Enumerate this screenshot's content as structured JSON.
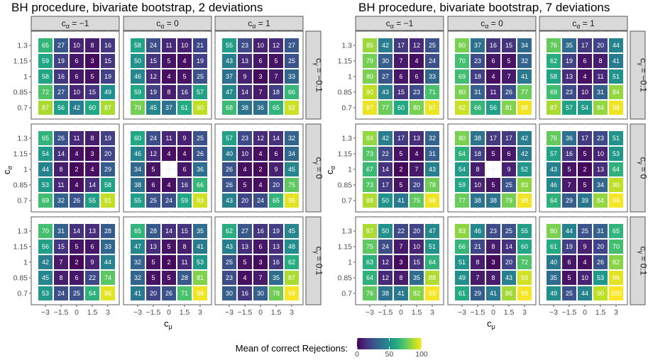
{
  "chart_data": [
    {
      "type": "heatmap",
      "title": "BH procedure, bivariate bootstrap, 2 deviations",
      "xlabel": "c_μ",
      "ylabel": "c_σ",
      "x_categories": [
        "−3",
        "−1.5",
        "0",
        "1.5",
        "3"
      ],
      "y_categories": [
        "1.3",
        "1.15",
        "1",
        "0.85",
        "0.7"
      ],
      "col_facets": [
        "c_α = −1",
        "c_α = 0",
        "c_α = 1"
      ],
      "row_facets": [
        "c_γ = −0.1",
        "c_γ = 0",
        "c_γ = 0.1"
      ],
      "panels": [
        [
          [
            [
              65,
              27,
              10,
              8,
              16
            ],
            [
              59,
              19,
              6,
              3,
              15
            ],
            [
              58,
              16,
              6,
              5,
              19
            ],
            [
              72,
              27,
              10,
              15,
              49
            ],
            [
              87,
              56,
              42,
              60,
              87
            ]
          ],
          [
            [
              58,
              24,
              11,
              10,
              21
            ],
            [
              50,
              15,
              5,
              4,
              19
            ],
            [
              46,
              12,
              4,
              5,
              25
            ],
            [
              59,
              19,
              8,
              16,
              57
            ],
            [
              79,
              45,
              37,
              61,
              90
            ]
          ],
          [
            [
              55,
              23,
              10,
              12,
              27
            ],
            [
              43,
              13,
              6,
              5,
              25
            ],
            [
              37,
              9,
              3,
              7,
              33
            ],
            [
              47,
              14,
              7,
              18,
              66
            ],
            [
              68,
              38,
              36,
              65,
              92
            ]
          ]
        ],
        [
          [
            [
              65,
              26,
              11,
              8,
              19
            ],
            [
              54,
              14,
              4,
              3,
              20
            ],
            [
              44,
              8,
              2,
              4,
              29
            ],
            [
              53,
              11,
              4,
              14,
              58
            ],
            [
              69,
              32,
              26,
              55,
              91
            ]
          ],
          [
            [
              60,
              24,
              11,
              9,
              25
            ],
            [
              46,
              12,
              4,
              4,
              26
            ],
            [
              34,
              5,
              null,
              6,
              36
            ],
            [
              38,
              6,
              4,
              16,
              66
            ],
            [
              55,
              25,
              24,
              59,
              93
            ]
          ],
          [
            [
              57,
              23,
              12,
              14,
              32
            ],
            [
              40,
              10,
              4,
              6,
              34
            ],
            [
              26,
              4,
              2,
              9,
              45
            ],
            [
              26,
              5,
              4,
              20,
              75
            ],
            [
              43,
              20,
              24,
              65,
              96
            ]
          ]
        ],
        [
          [
            [
              70,
              31,
              14,
              13,
              28
            ],
            [
              56,
              15,
              5,
              6,
              33
            ],
            [
              42,
              7,
              2,
              9,
              44
            ],
            [
              45,
              8,
              6,
              22,
              74
            ],
            [
              53,
              24,
              25,
              64,
              96
            ]
          ],
          [
            [
              65,
              28,
              14,
              15,
              35
            ],
            [
              47,
              13,
              5,
              8,
              41
            ],
            [
              32,
              5,
              2,
              11,
              53
            ],
            [
              32,
              5,
              5,
              28,
              81
            ],
            [
              41,
              20,
              26,
              71,
              98
            ]
          ],
          [
            [
              62,
              27,
              16,
              19,
              45
            ],
            [
              43,
              13,
              6,
              13,
              48
            ],
            [
              25,
              5,
              3,
              16,
              62
            ],
            [
              23,
              4,
              7,
              35,
              87
            ],
            [
              30,
              16,
              30,
              78,
              99
            ]
          ]
        ]
      ]
    },
    {
      "type": "heatmap",
      "title": "BH procedure, bivariate bootstrap, 7 deviations",
      "xlabel": "c_μ",
      "ylabel": "c_σ",
      "x_categories": [
        "−3",
        "−1.5",
        "0",
        "1.5",
        "3"
      ],
      "y_categories": [
        "1.3",
        "1.15",
        "1",
        "0.85",
        "0.7"
      ],
      "col_facets": [
        "c_α = −1",
        "c_α = 0",
        "c_α = 1"
      ],
      "row_facets": [
        "c_γ = −0.1",
        "c_γ = 0",
        "c_γ = 0.1"
      ],
      "panels": [
        [
          [
            [
              85,
              42,
              17,
              12,
              25
            ],
            [
              79,
              30,
              7,
              4,
              24
            ],
            [
              80,
              27,
              6,
              6,
              33
            ],
            [
              90,
              43,
              15,
              23,
              71
            ],
            [
              97,
              77,
              60,
              80,
              97
            ]
          ],
          [
            [
              80,
              37,
              16,
              15,
              34
            ],
            [
              70,
              23,
              6,
              5,
              32
            ],
            [
              69,
              18,
              4,
              7,
              41
            ],
            [
              80,
              31,
              11,
              26,
              77
            ],
            [
              92,
              66,
              56,
              81,
              98
            ]
          ],
          [
            [
              76,
              35,
              17,
              20,
              44
            ],
            [
              62,
              19,
              6,
              8,
              41
            ],
            [
              58,
              13,
              4,
              11,
              51
            ],
            [
              69,
              23,
              10,
              31,
              84
            ],
            [
              87,
              57,
              54,
              84,
              98
            ]
          ]
        ],
        [
          [
            [
              84,
              42,
              17,
              13,
              32
            ],
            [
              73,
              22,
              5,
              4,
              31
            ],
            [
              67,
              14,
              2,
              7,
              43
            ],
            [
              73,
              17,
              5,
              20,
              78
            ],
            [
              88,
              50,
              41,
              75,
              98
            ]
          ],
          [
            [
              80,
              38,
              17,
              17,
              42
            ],
            [
              64,
              18,
              5,
              6,
              42
            ],
            [
              54,
              8,
              null,
              9,
              52
            ],
            [
              59,
              10,
              5,
              25,
              83
            ],
            [
              77,
              38,
              38,
              79,
              98
            ]
          ],
          [
            [
              76,
              36,
              17,
              23,
              51
            ],
            [
              57,
              16,
              5,
              10,
              53
            ],
            [
              43,
              5,
              2,
              13,
              64
            ],
            [
              46,
              7,
              5,
              34,
              90
            ],
            [
              64,
              29,
              39,
              84,
              99
            ]
          ]
        ],
        [
          [
            [
              87,
              50,
              22,
              20,
              47
            ],
            [
              75,
              24,
              7,
              10,
              51
            ],
            [
              63,
              12,
              3,
              15,
              64
            ],
            [
              64,
              12,
              8,
              35,
              88
            ],
            [
              76,
              38,
              41,
              82,
              99
            ]
          ],
          [
            [
              83,
              46,
              23,
              25,
              55
            ],
            [
              66,
              21,
              8,
              14,
              60
            ],
            [
              51,
              8,
              3,
              20,
              72
            ],
            [
              49,
              7,
              8,
              43,
              93
            ],
            [
              61,
              29,
              41,
              86,
              99
            ]
          ],
          [
            [
              80,
              44,
              25,
              31,
              65
            ],
            [
              61,
              19,
              9,
              20,
              70
            ],
            [
              40,
              6,
              4,
              26,
              82
            ],
            [
              35,
              5,
              10,
              53,
              96
            ],
            [
              49,
              25,
              44,
              90,
              100
            ]
          ]
        ]
      ]
    }
  ],
  "legend": {
    "title": "Mean of correct Rejections:",
    "min": 0,
    "max": 100,
    "ticks": [
      "0",
      "50",
      "100"
    ]
  }
}
